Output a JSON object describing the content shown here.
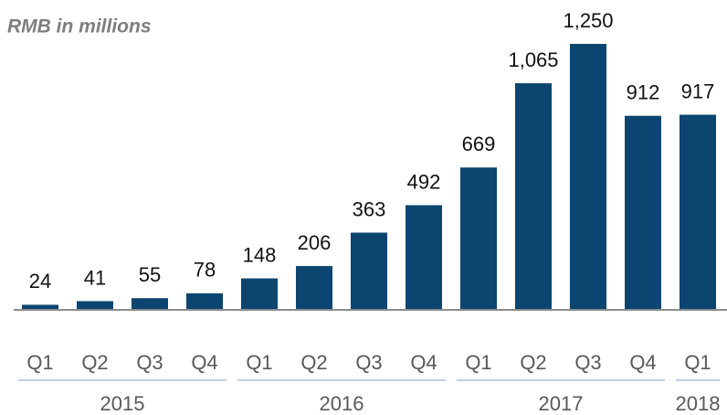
{
  "chart_data": {
    "type": "bar",
    "subtitle": "RMB in millions",
    "categories": [
      "Q1",
      "Q2",
      "Q3",
      "Q4",
      "Q1",
      "Q2",
      "Q3",
      "Q4",
      "Q1",
      "Q2",
      "Q3",
      "Q4",
      "Q1"
    ],
    "values": [
      24,
      41,
      55,
      78,
      148,
      206,
      363,
      492,
      669,
      1065,
      1250,
      912,
      917
    ],
    "value_labels": [
      "24",
      "41",
      "55",
      "78",
      "148",
      "206",
      "363",
      "492",
      "669",
      "1,065",
      "1,250",
      "912",
      "917"
    ],
    "color": "#0b4570",
    "groups": [
      {
        "name": "2015",
        "count": 4
      },
      {
        "name": "2016",
        "count": 4
      },
      {
        "name": "2017",
        "count": 4
      },
      {
        "name": "2018",
        "count": 1
      }
    ]
  }
}
